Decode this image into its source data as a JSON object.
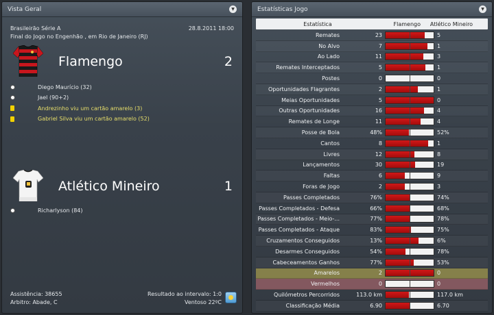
{
  "left": {
    "header": "Vista Geral",
    "competition": "Brasileirão Série A",
    "datetime": "28.8.2011 18:00",
    "venue_line": "Final do Jogo no Engenhão , em Rio de Janeiro (RJ)",
    "home": {
      "name": "Flamengo",
      "score": "2",
      "events": [
        {
          "type": "goal",
          "text": "Diego Maurício (32)"
        },
        {
          "type": "goal",
          "text": "Jael (90+2)"
        },
        {
          "type": "yellow",
          "text": "Andrezinho viu um cartão amarelo (3)"
        },
        {
          "type": "yellow",
          "text": "Gabriel Silva viu um cartão amarelo (52)"
        }
      ]
    },
    "away": {
      "name": "Atlético Mineiro",
      "score": "1",
      "events": [
        {
          "type": "goal",
          "text": "Richarlyson (84)"
        }
      ]
    },
    "attendance": "Assistência: 38655",
    "referee": "Arbitro: Abade, C",
    "halftime": "Resultado ao intervalo: 1:0",
    "weather": "Ventoso 22ºC"
  },
  "right": {
    "header": "Estatísticas Jogo",
    "col_stat": "Estatística",
    "col_home": "Flamengo",
    "col_away": "Atlético Mineiro",
    "rows": [
      {
        "name": "Remates",
        "home": "23",
        "away": "5",
        "share": 0.82
      },
      {
        "name": "No Alvo",
        "home": "7",
        "away": "1",
        "share": 0.875
      },
      {
        "name": "Ao Lado",
        "home": "11",
        "away": "3",
        "share": 0.786
      },
      {
        "name": "Remates Interceptados",
        "home": "5",
        "away": "1",
        "share": 0.833
      },
      {
        "name": "Postes",
        "home": "0",
        "away": "0",
        "share": 0.0
      },
      {
        "name": "Oportunidades Flagrantes",
        "home": "2",
        "away": "1",
        "share": 0.667
      },
      {
        "name": "Meias Oportunidades",
        "home": "5",
        "away": "0",
        "share": 1.0
      },
      {
        "name": "Outras Oportunidades",
        "home": "16",
        "away": "4",
        "share": 0.8
      },
      {
        "name": "Remates de Longe",
        "home": "11",
        "away": "4",
        "share": 0.733
      },
      {
        "name": "Posse de Bola",
        "home": "48%",
        "away": "52%",
        "share": 0.48
      },
      {
        "name": "Cantos",
        "home": "8",
        "away": "1",
        "share": 0.889
      },
      {
        "name": "Livres",
        "home": "12",
        "away": "8",
        "share": 0.6
      },
      {
        "name": "Lançamentos",
        "home": "30",
        "away": "19",
        "share": 0.612
      },
      {
        "name": "Faltas",
        "home": "6",
        "away": "9",
        "share": 0.4
      },
      {
        "name": "Foras de Jogo",
        "home": "2",
        "away": "3",
        "share": 0.4
      },
      {
        "name": "Passes Completados",
        "home": "76%",
        "away": "74%",
        "share": 0.507
      },
      {
        "name": "Passes Completados - Defesa",
        "home": "66%",
        "away": "68%",
        "share": 0.493
      },
      {
        "name": "Passes Completados - Meio-...",
        "home": "77%",
        "away": "78%",
        "share": 0.497
      },
      {
        "name": "Passes Completados - Ataque",
        "home": "83%",
        "away": "75%",
        "share": 0.525
      },
      {
        "name": "Cruzamentos Conseguidos",
        "home": "13%",
        "away": "6%",
        "share": 0.68
      },
      {
        "name": "Desarmes Conseguidos",
        "home": "54%",
        "away": "78%",
        "share": 0.41
      },
      {
        "name": "Cabeceamentos Ganhos",
        "home": "77%",
        "away": "53%",
        "share": 0.59
      },
      {
        "name": "Amarelos",
        "home": "2",
        "away": "0",
        "share": 1.0,
        "highlight": "yellow"
      },
      {
        "name": "Vermelhos",
        "home": "0",
        "away": "0",
        "share": 0.0,
        "highlight": "red"
      },
      {
        "name": "Quilómetros Percorridos",
        "home": "113.0 km",
        "away": "117.0 km",
        "share": 0.49
      },
      {
        "name": "Classificação Média",
        "home": "6.90",
        "away": "6.70",
        "share": 0.507
      }
    ]
  },
  "colors": {
    "bar_fill": "#c01414",
    "yellow_row": "#85804a",
    "red_row": "#83585f"
  }
}
